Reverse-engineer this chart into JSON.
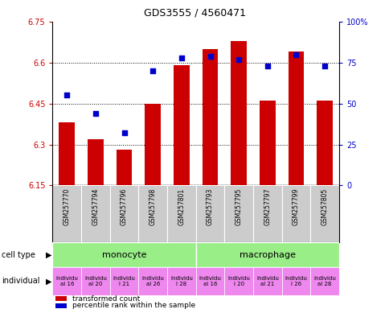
{
  "title": "GDS3555 / 4560471",
  "samples": [
    "GSM257770",
    "GSM257794",
    "GSM257796",
    "GSM257798",
    "GSM257801",
    "GSM257793",
    "GSM257795",
    "GSM257797",
    "GSM257799",
    "GSM257805"
  ],
  "bar_values": [
    6.38,
    6.32,
    6.28,
    6.45,
    6.59,
    6.65,
    6.68,
    6.46,
    6.64,
    6.46
  ],
  "dot_values": [
    55,
    44,
    32,
    70,
    78,
    79,
    77,
    73,
    80,
    73
  ],
  "ylim_left": [
    6.15,
    6.75
  ],
  "ylim_right": [
    0,
    100
  ],
  "yticks_left": [
    6.15,
    6.3,
    6.45,
    6.6,
    6.75
  ],
  "yticks_right": [
    0,
    25,
    50,
    75,
    100
  ],
  "ytick_labels_left": [
    "6.15",
    "6.3",
    "6.45",
    "6.6",
    "6.75"
  ],
  "ytick_labels_right": [
    "0",
    "25",
    "50",
    "75",
    "100%"
  ],
  "bar_color": "#cc0000",
  "dot_color": "#0000cc",
  "bar_bottom": 6.15,
  "monocyte_label": "monocyte",
  "macrophage_label": "macrophage",
  "cell_type_color": "#99ee88",
  "individual_color": "#ee88ee",
  "individuals": [
    "individu\nal 16",
    "individu\nal 20",
    "individu\nl 21",
    "individu\nal 26",
    "individu\nl 28",
    "individu\nal 16",
    "individu\nl 20",
    "individu\nal 21",
    "individu\nl 26",
    "individu\nal 28"
  ],
  "label_cell_type": "cell type",
  "label_individual": "individual",
  "legend_bar": "transformed count",
  "legend_dot": "percentile rank within the sample",
  "axis_label_color_left": "#cc0000",
  "axis_label_color_right": "#0000cc",
  "sample_area_bg": "#cccccc",
  "title_fontsize": 9,
  "tick_fontsize": 7,
  "sample_fontsize": 5.5,
  "label_fontsize": 7,
  "cell_fontsize": 8,
  "ind_fontsize": 5,
  "legend_fontsize": 6.5
}
